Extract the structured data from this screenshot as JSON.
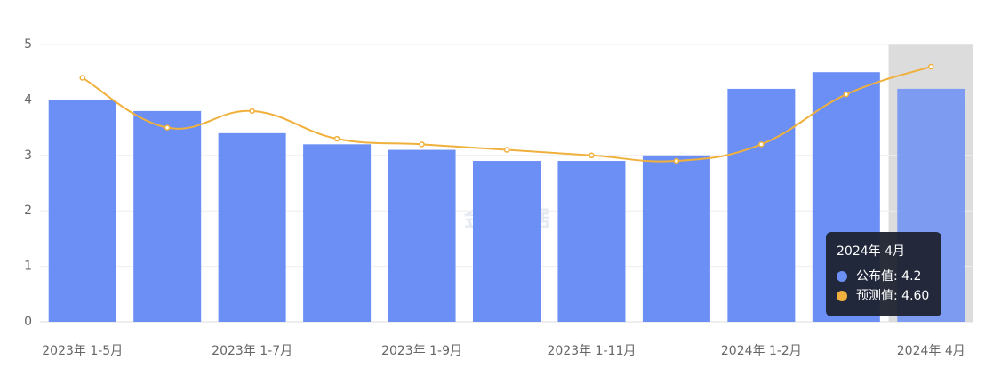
{
  "chart_data": {
    "type": "bar-line",
    "watermark": "金十数据",
    "categories": [
      "2023年 1-5月",
      null,
      "2023年 1-7月",
      null,
      "2023年 1-9月",
      null,
      "2023年 1-11月",
      null,
      "2024年 1-2月",
      null,
      "2024年 4月"
    ],
    "series": [
      {
        "type": "bar",
        "color": "#6b8ff5",
        "values": [
          4.0,
          3.8,
          3.4,
          3.2,
          3.1,
          2.9,
          2.9,
          3.0,
          4.2,
          4.5,
          4.2
        ]
      },
      {
        "type": "line",
        "color": "#f0b03c",
        "values": [
          4.4,
          3.5,
          3.8,
          3.3,
          3.2,
          3.1,
          3.0,
          2.9,
          3.2,
          4.1,
          4.6
        ]
      }
    ],
    "ylim": [
      0,
      5
    ],
    "yticks": [
      0,
      1,
      2,
      3,
      4,
      5
    ],
    "grid": true,
    "tooltip": {
      "rows": [
        "公布值: 4.2",
        "预测值: 4.60"
      ]
    }
  }
}
